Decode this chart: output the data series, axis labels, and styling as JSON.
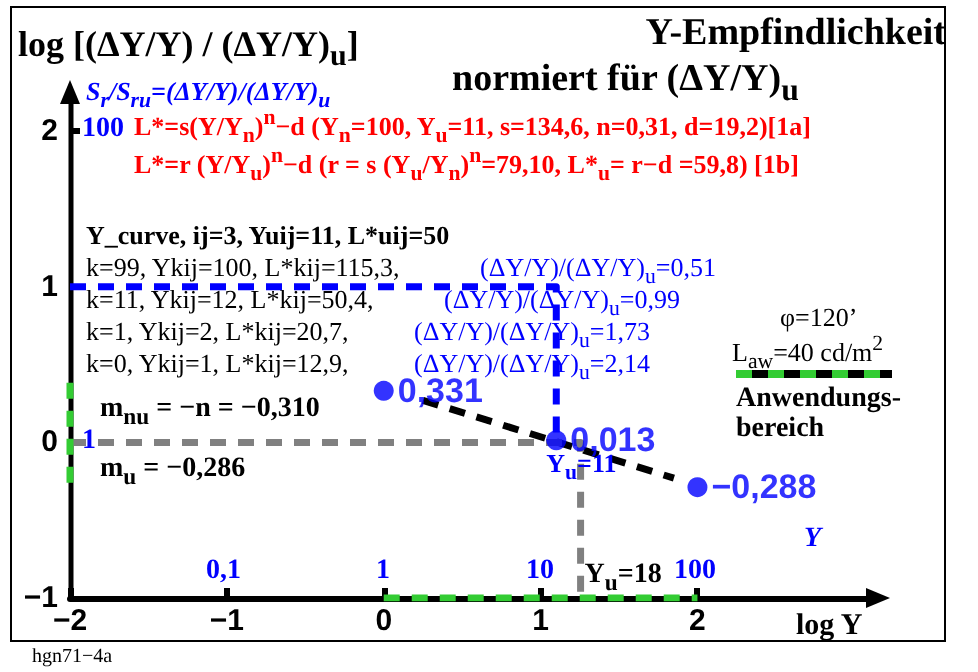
{
  "chart_data": {
    "type": "scatter",
    "title": "Y-Empfindlichkeit",
    "subtitle": "normiert für (ΔY/Y)$_{u}$",
    "ylabel": "log [(ΔY/Y) / (ΔY/Y)$_{u}$]",
    "xlabel": "log Y",
    "xlim": [
      -2,
      3.1
    ],
    "xticks": [
      -2,
      -1,
      0,
      1,
      2
    ],
    "ylim": [
      -1,
      2.2
    ],
    "yticks": [
      -1,
      0,
      1,
      2
    ],
    "series": [
      {
        "color": "#0000ff",
        "marker": "circle",
        "x": [
          0,
          1.1,
          2
        ],
        "values": [
          0.331,
          0.013,
          -0.288
        ],
        "value_labels": [
          "0,331",
          "0,013",
          "−0,288"
        ]
      },
      {
        "type": "line",
        "color": "#000000",
        "marker": "none",
        "line_style": "dashed",
        "x": [
          0.25,
          1.85
        ],
        "values": [
          0.27,
          -0.23
        ]
      },
      {
        "type": "line",
        "color": "#0000ff",
        "marker": "none",
        "line_style": "dashed",
        "x": [
          -2,
          1.1,
          1.1
        ],
        "values": [
          1,
          1,
          0
        ]
      },
      {
        "type": "line",
        "color": "#808080",
        "marker": "none",
        "line_style": "dashed",
        "x": [
          -2,
          1.255,
          1.255
        ],
        "values": [
          0,
          0,
          -1
        ]
      },
      {
        "type": "line",
        "color": "#33cc33",
        "marker": "none",
        "line_style": "dashed",
        "x": [
          0,
          2
        ],
        "values": [
          -1,
          -1
        ]
      },
      {
        "type": "line",
        "color": "#33cc33",
        "marker": "none",
        "line_style": "dashed",
        "x": [
          -2,
          -2
        ],
        "values": [
          -0.26,
          0.45
        ]
      }
    ],
    "annotations": [
      "L*=s(Y/Y$_{n}$)$^{n}$−d  (Y$_{n}$=100, Y$_{u}$=11, s=134,6, n=0,31, d=19,2)[1a]",
      "L*=r (Y/Y$_{u}$)$^{n}$−d  (r = s (Y$_{u}$/Y$_{n}$)$^{n}$=79,10, L*$_{u}$= r−d =59,8)     [1b]",
      "Y_curve, ij=3, Yuij=11, L*uij=50",
      "k=99, Ykij=100, L*kij=115,3,",
      "(ΔY/Y)/(ΔY/Y)$_{u}$=0,51",
      "k=11, Ykij=12, L*kij=50,4,",
      "(ΔY/Y)/(ΔY/Y)$_{u}$=0,99",
      "k=1, Ykij=2, L*kij=20,7,",
      "(ΔY/Y)/(ΔY/Y)$_{u}$=1,73",
      "k=0, Ykij=1, L*kij=12,9,",
      "(ΔY/Y)/(ΔY/Y)$_{u}$=2,14",
      "m$_{nu}$ = −n = −0,310",
      "m$_{u}$ = −0,286",
      "φ=120’",
      "L$_{aw}$=40 cd/m$^{2}$",
      {
        "text": "Y$_{u}$=11",
        "x": 1.1,
        "y": 0
      },
      {
        "text": "Y$_{u}$=18",
        "x": 1.255,
        "y": -1
      },
      "hgn71−4a",
      "Anwendungs-bereich",
      "S$_{r}$/S$_{ru}$=(ΔY/Y)/(ΔY/Y)$_{u}$",
      "0,1",
      "1",
      "10",
      "100",
      "Y",
      "100",
      "1"
    ]
  }
}
